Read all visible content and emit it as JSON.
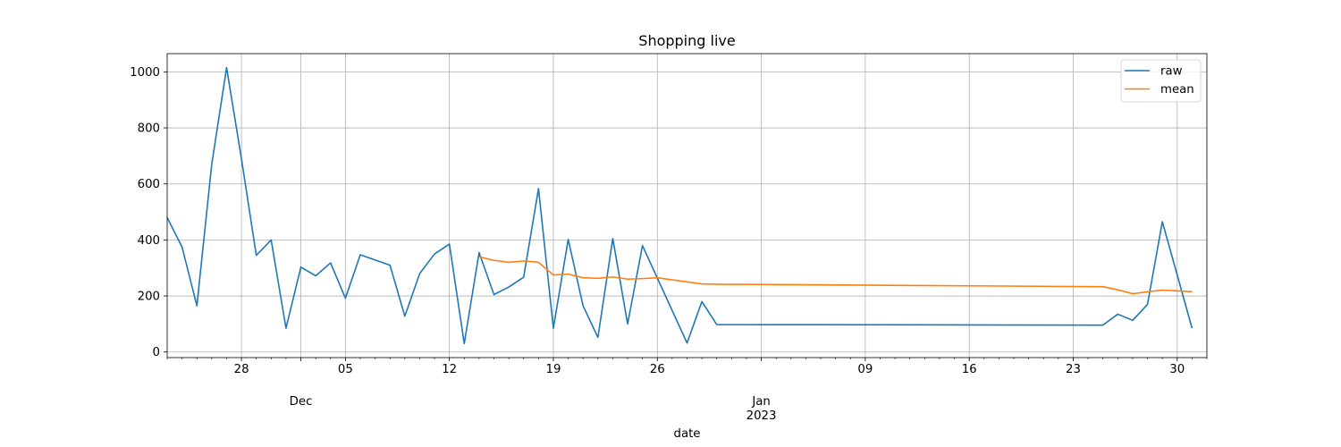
{
  "chart_data": {
    "type": "line",
    "title": "Shopping live",
    "xlabel": "date",
    "ylabel": "",
    "ylim": [
      -20,
      1065
    ],
    "yticks": [
      0,
      200,
      400,
      600,
      800,
      1000
    ],
    "xlim": [
      "2022-11-22",
      "2023-01-31"
    ],
    "x_major_ticks": [
      {
        "date": "2022-11-27",
        "label": "28"
      },
      {
        "date": "2022-12-01",
        "label": "Dec"
      },
      {
        "date": "2022-12-04",
        "label": "05"
      },
      {
        "date": "2022-12-11",
        "label": "12"
      },
      {
        "date": "2022-12-18",
        "label": "19"
      },
      {
        "date": "2022-12-25",
        "label": "26"
      },
      {
        "date": "2023-01-01",
        "label": "Jan\n2023"
      },
      {
        "date": "2023-01-08",
        "label": "09"
      },
      {
        "date": "2023-01-15",
        "label": "16"
      },
      {
        "date": "2023-01-22",
        "label": "23"
      },
      {
        "date": "2023-01-29",
        "label": "30"
      }
    ],
    "grid": true,
    "legend_position": "top-right",
    "series": [
      {
        "name": "raw",
        "color": "#1f77b4",
        "points": [
          [
            "2022-11-22",
            480
          ],
          [
            "2022-11-23",
            375
          ],
          [
            "2022-11-24",
            165
          ],
          [
            "2022-11-25",
            670
          ],
          [
            "2022-11-26",
            1015
          ],
          [
            "2022-11-27",
            690
          ],
          [
            "2022-11-28",
            345
          ],
          [
            "2022-11-29",
            400
          ],
          [
            "2022-11-30",
            85
          ],
          [
            "2022-12-01",
            303
          ],
          [
            "2022-12-02",
            272
          ],
          [
            "2022-12-03",
            318
          ],
          [
            "2022-12-04",
            192
          ],
          [
            "2022-12-05",
            347
          ],
          [
            "2022-12-07",
            310
          ],
          [
            "2022-12-08",
            128
          ],
          [
            "2022-12-09",
            280
          ],
          [
            "2022-12-10",
            350
          ],
          [
            "2022-12-11",
            385
          ],
          [
            "2022-12-12",
            30
          ],
          [
            "2022-12-13",
            355
          ],
          [
            "2022-12-14",
            205
          ],
          [
            "2022-12-15",
            232
          ],
          [
            "2022-12-16",
            267
          ],
          [
            "2022-12-17",
            583
          ],
          [
            "2022-12-18",
            85
          ],
          [
            "2022-12-19",
            402
          ],
          [
            "2022-12-20",
            165
          ],
          [
            "2022-12-21",
            52
          ],
          [
            "2022-12-22",
            405
          ],
          [
            "2022-12-23",
            100
          ],
          [
            "2022-12-24",
            380
          ],
          [
            "2022-12-27",
            32
          ],
          [
            "2022-12-28",
            180
          ],
          [
            "2022-12-29",
            98
          ],
          [
            "2023-01-24",
            96
          ],
          [
            "2023-01-25",
            135
          ],
          [
            "2023-01-26",
            113
          ],
          [
            "2023-01-27",
            170
          ],
          [
            "2023-01-28",
            465
          ],
          [
            "2023-01-30",
            85
          ]
        ]
      },
      {
        "name": "mean",
        "color": "#ff7f0e",
        "points": [
          [
            "2022-12-13",
            340
          ],
          [
            "2022-12-14",
            327
          ],
          [
            "2022-12-15",
            320
          ],
          [
            "2022-12-16",
            325
          ],
          [
            "2022-12-17",
            320
          ],
          [
            "2022-12-18",
            275
          ],
          [
            "2022-12-19",
            278
          ],
          [
            "2022-12-20",
            265
          ],
          [
            "2022-12-21",
            263
          ],
          [
            "2022-12-22",
            268
          ],
          [
            "2022-12-23",
            260
          ],
          [
            "2022-12-24",
            262
          ],
          [
            "2022-12-25",
            265
          ],
          [
            "2022-12-28",
            243
          ],
          [
            "2022-12-29",
            242
          ],
          [
            "2023-01-24",
            233
          ],
          [
            "2023-01-25",
            222
          ],
          [
            "2023-01-26",
            208
          ],
          [
            "2023-01-27",
            215
          ],
          [
            "2023-01-28",
            221
          ],
          [
            "2023-01-30",
            215
          ]
        ]
      }
    ]
  }
}
